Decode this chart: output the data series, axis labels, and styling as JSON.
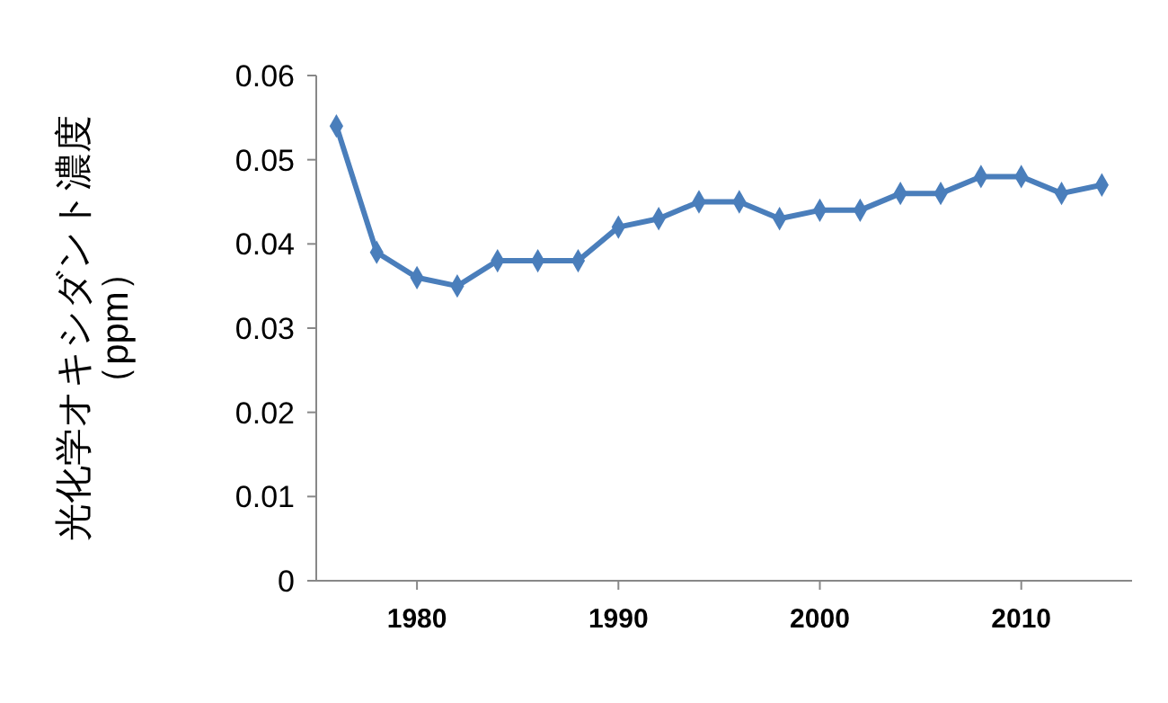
{
  "chart_data": {
    "type": "line",
    "ylabel": "光化学オキシダント濃度（ppm）",
    "x": [
      1976,
      1978,
      1980,
      1982,
      1984,
      1986,
      1988,
      1990,
      1992,
      1994,
      1996,
      1998,
      2000,
      2002,
      2004,
      2006,
      2008,
      2010,
      2012,
      2014
    ],
    "series": [
      {
        "color": "#4a7ebb",
        "values": [
          0.054,
          0.039,
          0.036,
          0.035,
          0.038,
          0.038,
          0.038,
          0.042,
          0.043,
          0.045,
          0.045,
          0.043,
          0.044,
          0.044,
          0.046,
          0.046,
          0.048,
          0.048,
          0.046,
          0.047
        ]
      }
    ],
    "xlim": [
      1975,
      2015.5
    ],
    "xticks": [
      1980,
      1990,
      2000,
      2010
    ],
    "ylim": [
      0,
      0.06
    ],
    "yticks": [
      0,
      0.01,
      0.02,
      0.03,
      0.04,
      0.05,
      0.06
    ],
    "grid": false,
    "marker": "diamond",
    "line_style": "solid"
  }
}
